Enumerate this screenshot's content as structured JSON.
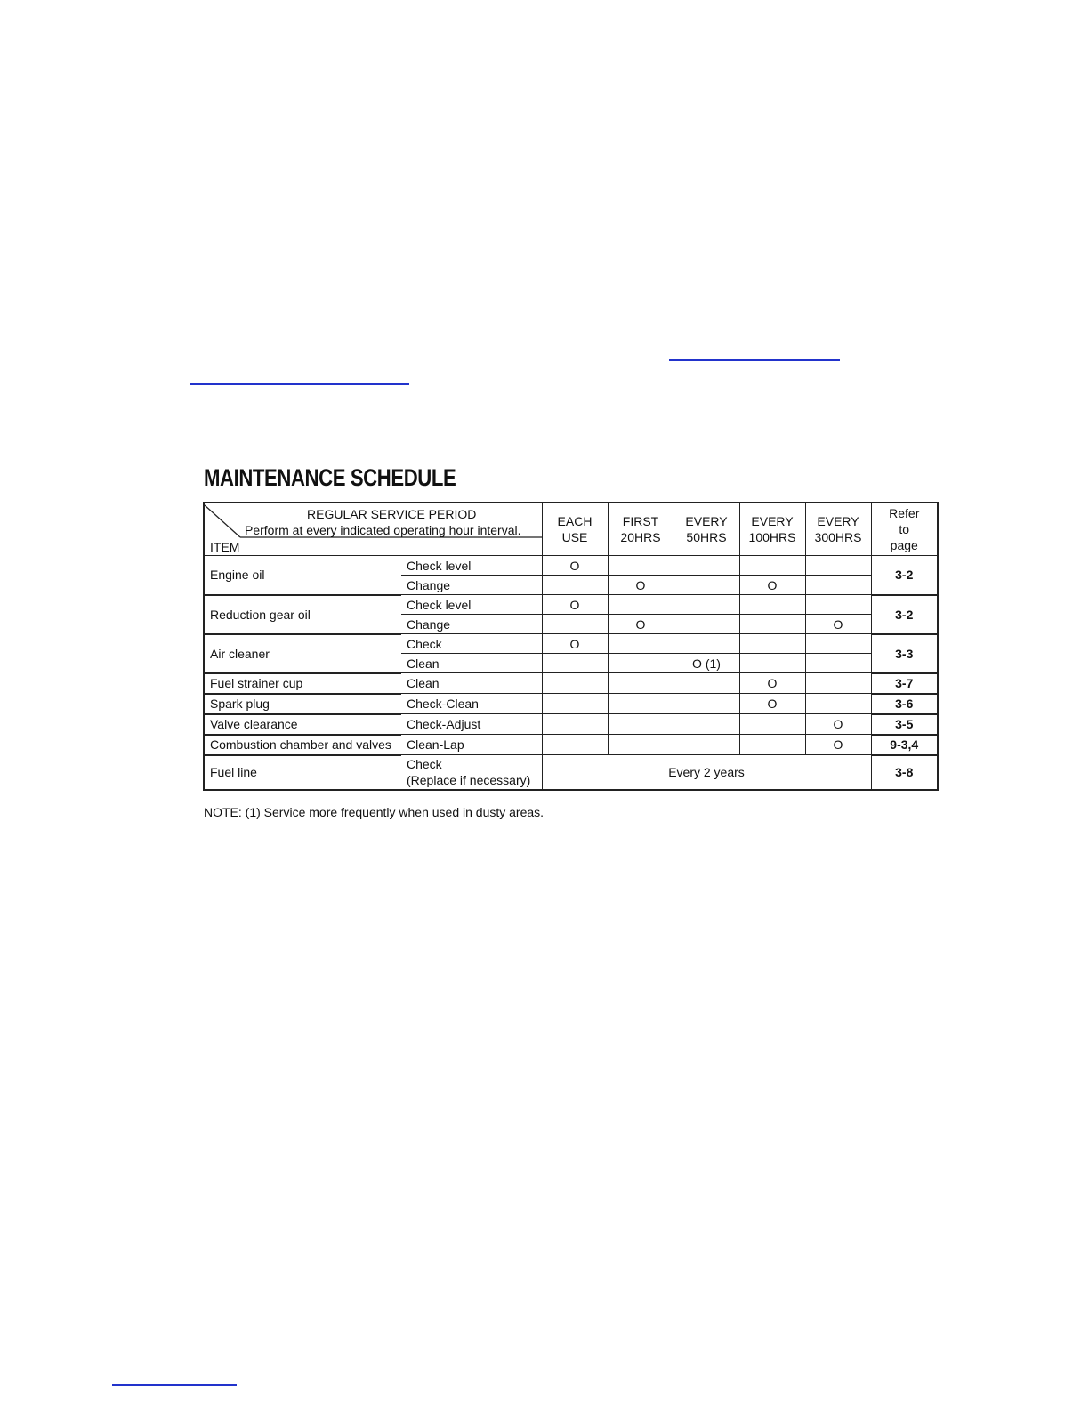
{
  "title": "MAINTENANCE SCHEDULE",
  "header": {
    "period_label": "REGULAR SERVICE PERIOD",
    "instruction": "Perform at every indicated operating hour interval.",
    "item_label": "ITEM",
    "columns": [
      [
        "EACH",
        "USE"
      ],
      [
        "FIRST",
        "20HRS"
      ],
      [
        "EVERY",
        "50HRS"
      ],
      [
        "EVERY",
        "100HRS"
      ],
      [
        "EVERY",
        "300HRS"
      ],
      [
        "Refer",
        "to",
        "page"
      ]
    ]
  },
  "mark_symbol": "O",
  "items": [
    {
      "name": "Engine oil",
      "page": "3-2",
      "tasks": [
        {
          "action": "Check level",
          "marks": [
            "O",
            "",
            "",
            "",
            ""
          ]
        },
        {
          "action": "Change",
          "marks": [
            "",
            "O",
            "",
            "O",
            ""
          ]
        }
      ]
    },
    {
      "name": "Reduction gear oil",
      "page": "3-2",
      "tasks": [
        {
          "action": "Check level",
          "marks": [
            "O",
            "",
            "",
            "",
            ""
          ]
        },
        {
          "action": "Change",
          "marks": [
            "",
            "O",
            "",
            "",
            "O"
          ]
        }
      ]
    },
    {
      "name": "Air cleaner",
      "page": "3-3",
      "tasks": [
        {
          "action": "Check",
          "marks": [
            "O",
            "",
            "",
            "",
            ""
          ]
        },
        {
          "action": "Clean",
          "marks": [
            "",
            "",
            "O (1)",
            "",
            ""
          ]
        }
      ]
    },
    {
      "name": "Fuel strainer cup",
      "page": "3-7",
      "tasks": [
        {
          "action": "Clean",
          "marks": [
            "",
            "",
            "",
            "O",
            ""
          ]
        }
      ]
    },
    {
      "name": "Spark plug",
      "page": "3-6",
      "tasks": [
        {
          "action": "Check-Clean",
          "marks": [
            "",
            "",
            "",
            "O",
            ""
          ]
        }
      ]
    },
    {
      "name": "Valve clearance",
      "page": "3-5",
      "tasks": [
        {
          "action": "Check-Adjust",
          "marks": [
            "",
            "",
            "",
            "",
            "O"
          ]
        }
      ]
    },
    {
      "name": "Combustion chamber and valves",
      "page": "9-3,4",
      "tasks": [
        {
          "action": "Clean-Lap",
          "marks": [
            "",
            "",
            "",
            "",
            "O"
          ]
        }
      ]
    },
    {
      "name": "Fuel line",
      "page": "3-8",
      "tasks": [
        {
          "action": "Check",
          "action2": "(Replace if necessary)",
          "span": "Every 2 years"
        }
      ]
    }
  ],
  "note": "NOTE: (1) Service more frequently when used in dusty areas.",
  "link_color": "#2233cc"
}
